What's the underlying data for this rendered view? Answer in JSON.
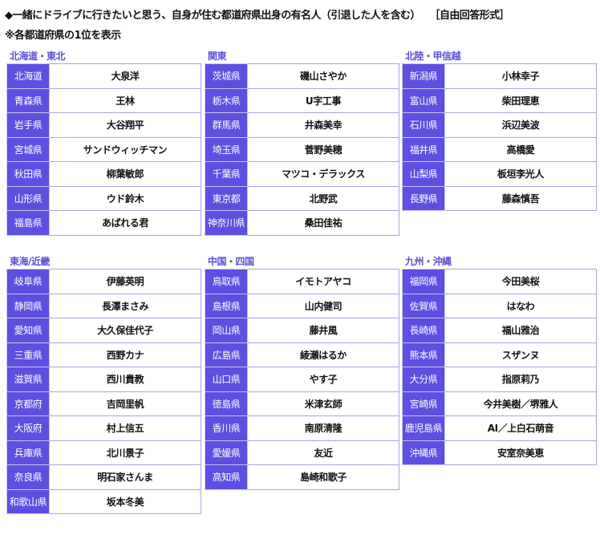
{
  "title": "◆一緒にドライブに行きたいと思う、自身が住む都道府県出身の有名人（引退した人を含む）　　［自由回答形式］",
  "note": "※各都道府県の1位を表示",
  "colors": {
    "header": "#5a4fd6",
    "label_bg": "#5d4fe0",
    "border": "#a9a3e0"
  },
  "regions": [
    {
      "name": "北海道・東北",
      "rows": [
        [
          "北海道",
          "大泉洋"
        ],
        [
          "青森県",
          "王林"
        ],
        [
          "岩手県",
          "大谷翔平"
        ],
        [
          "宮城県",
          "サンドウィッチマン"
        ],
        [
          "秋田県",
          "柳葉敏郎"
        ],
        [
          "山形県",
          "ウド鈴木"
        ],
        [
          "福島県",
          "あばれる君"
        ]
      ]
    },
    {
      "name": "関東",
      "rows": [
        [
          "茨城県",
          "磯山さやか"
        ],
        [
          "栃木県",
          "U字工事"
        ],
        [
          "群馬県",
          "井森美幸"
        ],
        [
          "埼玉県",
          "菅野美穂"
        ],
        [
          "千葉県",
          "マツコ・デラックス"
        ],
        [
          "東京都",
          "北野武"
        ],
        [
          "神奈川県",
          "桑田佳祐"
        ]
      ]
    },
    {
      "name": "北陸・甲信越",
      "rows": [
        [
          "新潟県",
          "小林幸子"
        ],
        [
          "富山県",
          "柴田理恵"
        ],
        [
          "石川県",
          "浜辺美波"
        ],
        [
          "福井県",
          "高橋愛"
        ],
        [
          "山梨県",
          "板垣李光人"
        ],
        [
          "長野県",
          "藤森慎吾"
        ]
      ]
    },
    {
      "name": "東海/近畿",
      "rows": [
        [
          "岐阜県",
          "伊藤英明"
        ],
        [
          "静岡県",
          "長澤まさみ"
        ],
        [
          "愛知県",
          "大久保佳代子"
        ],
        [
          "三重県",
          "西野カナ"
        ],
        [
          "滋賀県",
          "西川貴教"
        ],
        [
          "京都府",
          "吉岡里帆"
        ],
        [
          "大阪府",
          "村上信五"
        ],
        [
          "兵庫県",
          "北川景子"
        ],
        [
          "奈良県",
          "明石家さんま"
        ],
        [
          "和歌山県",
          "坂本冬美"
        ]
      ]
    },
    {
      "name": "中国・四国",
      "rows": [
        [
          "鳥取県",
          "イモトアヤコ"
        ],
        [
          "島根県",
          "山内健司"
        ],
        [
          "岡山県",
          "藤井風"
        ],
        [
          "広島県",
          "綾瀬はるか"
        ],
        [
          "山口県",
          "やす子"
        ],
        [
          "徳島県",
          "米津玄師"
        ],
        [
          "香川県",
          "南原清隆"
        ],
        [
          "愛媛県",
          "友近"
        ],
        [
          "高知県",
          "島崎和歌子"
        ]
      ]
    },
    {
      "name": "九州・沖縄",
      "rows": [
        [
          "福岡県",
          "今田美桜"
        ],
        [
          "佐賀県",
          "はなわ"
        ],
        [
          "長崎県",
          "福山雅治"
        ],
        [
          "熊本県",
          "スザンヌ"
        ],
        [
          "大分県",
          "指原莉乃"
        ],
        [
          "宮崎県",
          "今井美樹／堺雅人"
        ],
        [
          "鹿児島県",
          "AI／上白石萌音"
        ],
        [
          "沖縄県",
          "安室奈美恵"
        ]
      ]
    }
  ]
}
